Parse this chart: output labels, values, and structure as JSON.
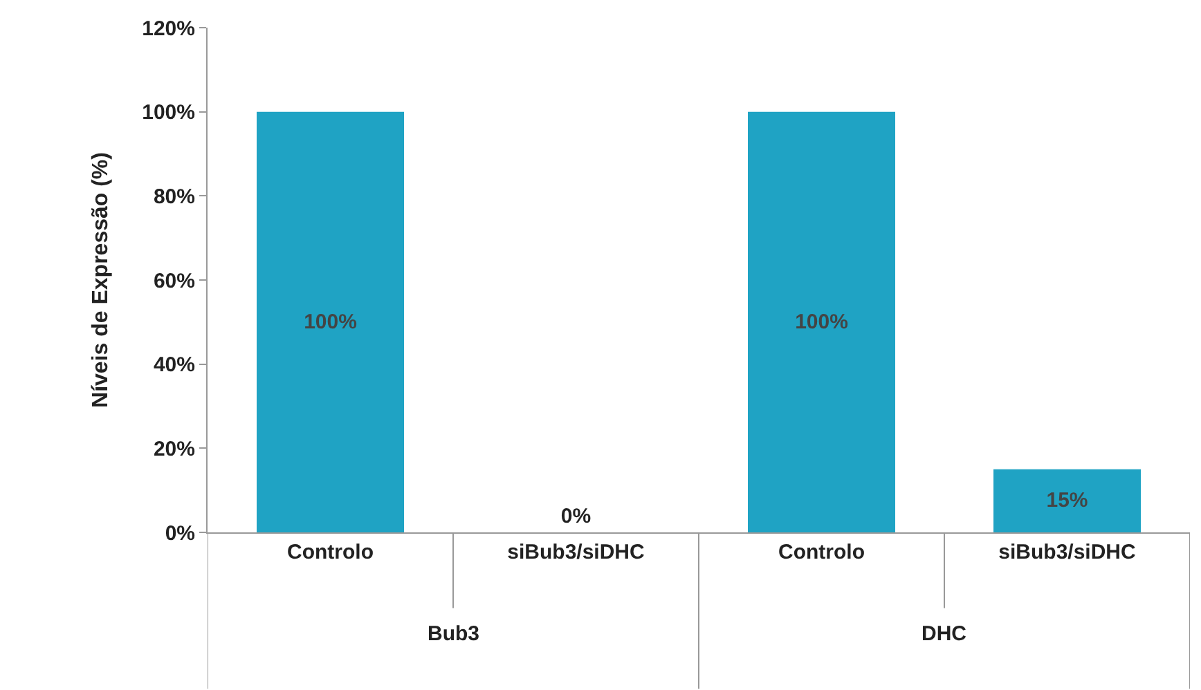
{
  "chart_data": {
    "type": "bar",
    "ylabel": "Níveis de Expressão (%)",
    "categories": [
      "Controlo",
      "siBub3/siDHC",
      "Controlo",
      "siBub3/siDHC"
    ],
    "values": [
      100,
      0,
      100,
      15
    ],
    "value_labels": [
      "100%",
      "0%",
      "100%",
      "15%"
    ],
    "color": "#1fa3c4",
    "ylim": [
      0,
      120
    ],
    "yticks": [
      {
        "value": 0,
        "label": "0%"
      },
      {
        "value": 20,
        "label": "20%"
      },
      {
        "value": 40,
        "label": "40%"
      },
      {
        "value": 60,
        "label": "60%"
      },
      {
        "value": 80,
        "label": "80%"
      },
      {
        "value": 100,
        "label": "100%"
      },
      {
        "value": 120,
        "label": "120%"
      }
    ],
    "annotations": [
      "Bub3",
      "DHC"
    ]
  }
}
